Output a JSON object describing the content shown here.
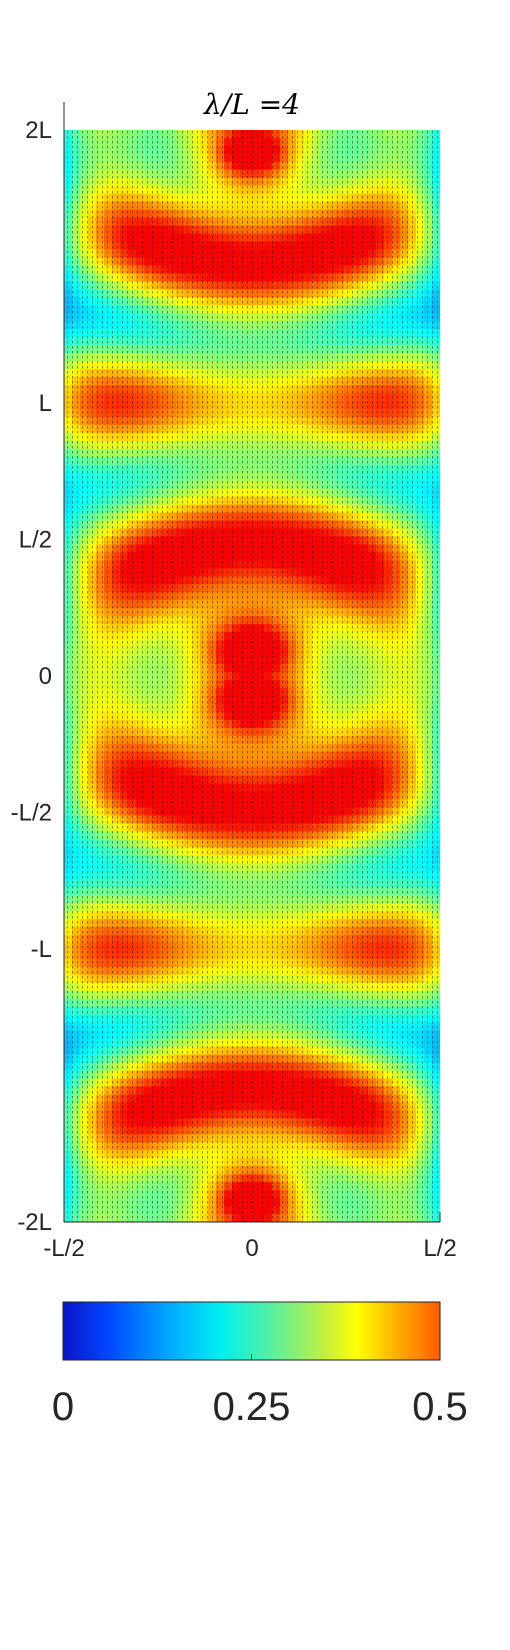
{
  "chart_data": {
    "type": "heatmap",
    "title": "λ/L =4",
    "xlabel": "",
    "ylabel": "",
    "x_ticks": [
      {
        "value": -0.5,
        "label": "-L/2"
      },
      {
        "value": 0,
        "label": "0"
      },
      {
        "value": 0.5,
        "label": "L/2"
      }
    ],
    "y_ticks": [
      {
        "value": 2,
        "label": "2L"
      },
      {
        "value": 1,
        "label": "L"
      },
      {
        "value": 0.5,
        "label": "L/2"
      },
      {
        "value": 0,
        "label": "0"
      },
      {
        "value": -0.5,
        "label": "-L/2"
      },
      {
        "value": -1,
        "label": "-L"
      },
      {
        "value": -2,
        "label": "-2L"
      }
    ],
    "xlim": [
      -0.5,
      0.5
    ],
    "ylim": [
      -2,
      2
    ],
    "colormap": "jet",
    "colorbar": {
      "orientation": "horizontal",
      "placement": "bottom",
      "range": [
        0,
        0.5
      ],
      "ticks": [
        {
          "value": 0,
          "label": "0"
        },
        {
          "value": 0.25,
          "label": "0.25"
        },
        {
          "value": 0.5,
          "label": "0.5"
        }
      ]
    },
    "overlay": "quiver",
    "grid": false
  }
}
